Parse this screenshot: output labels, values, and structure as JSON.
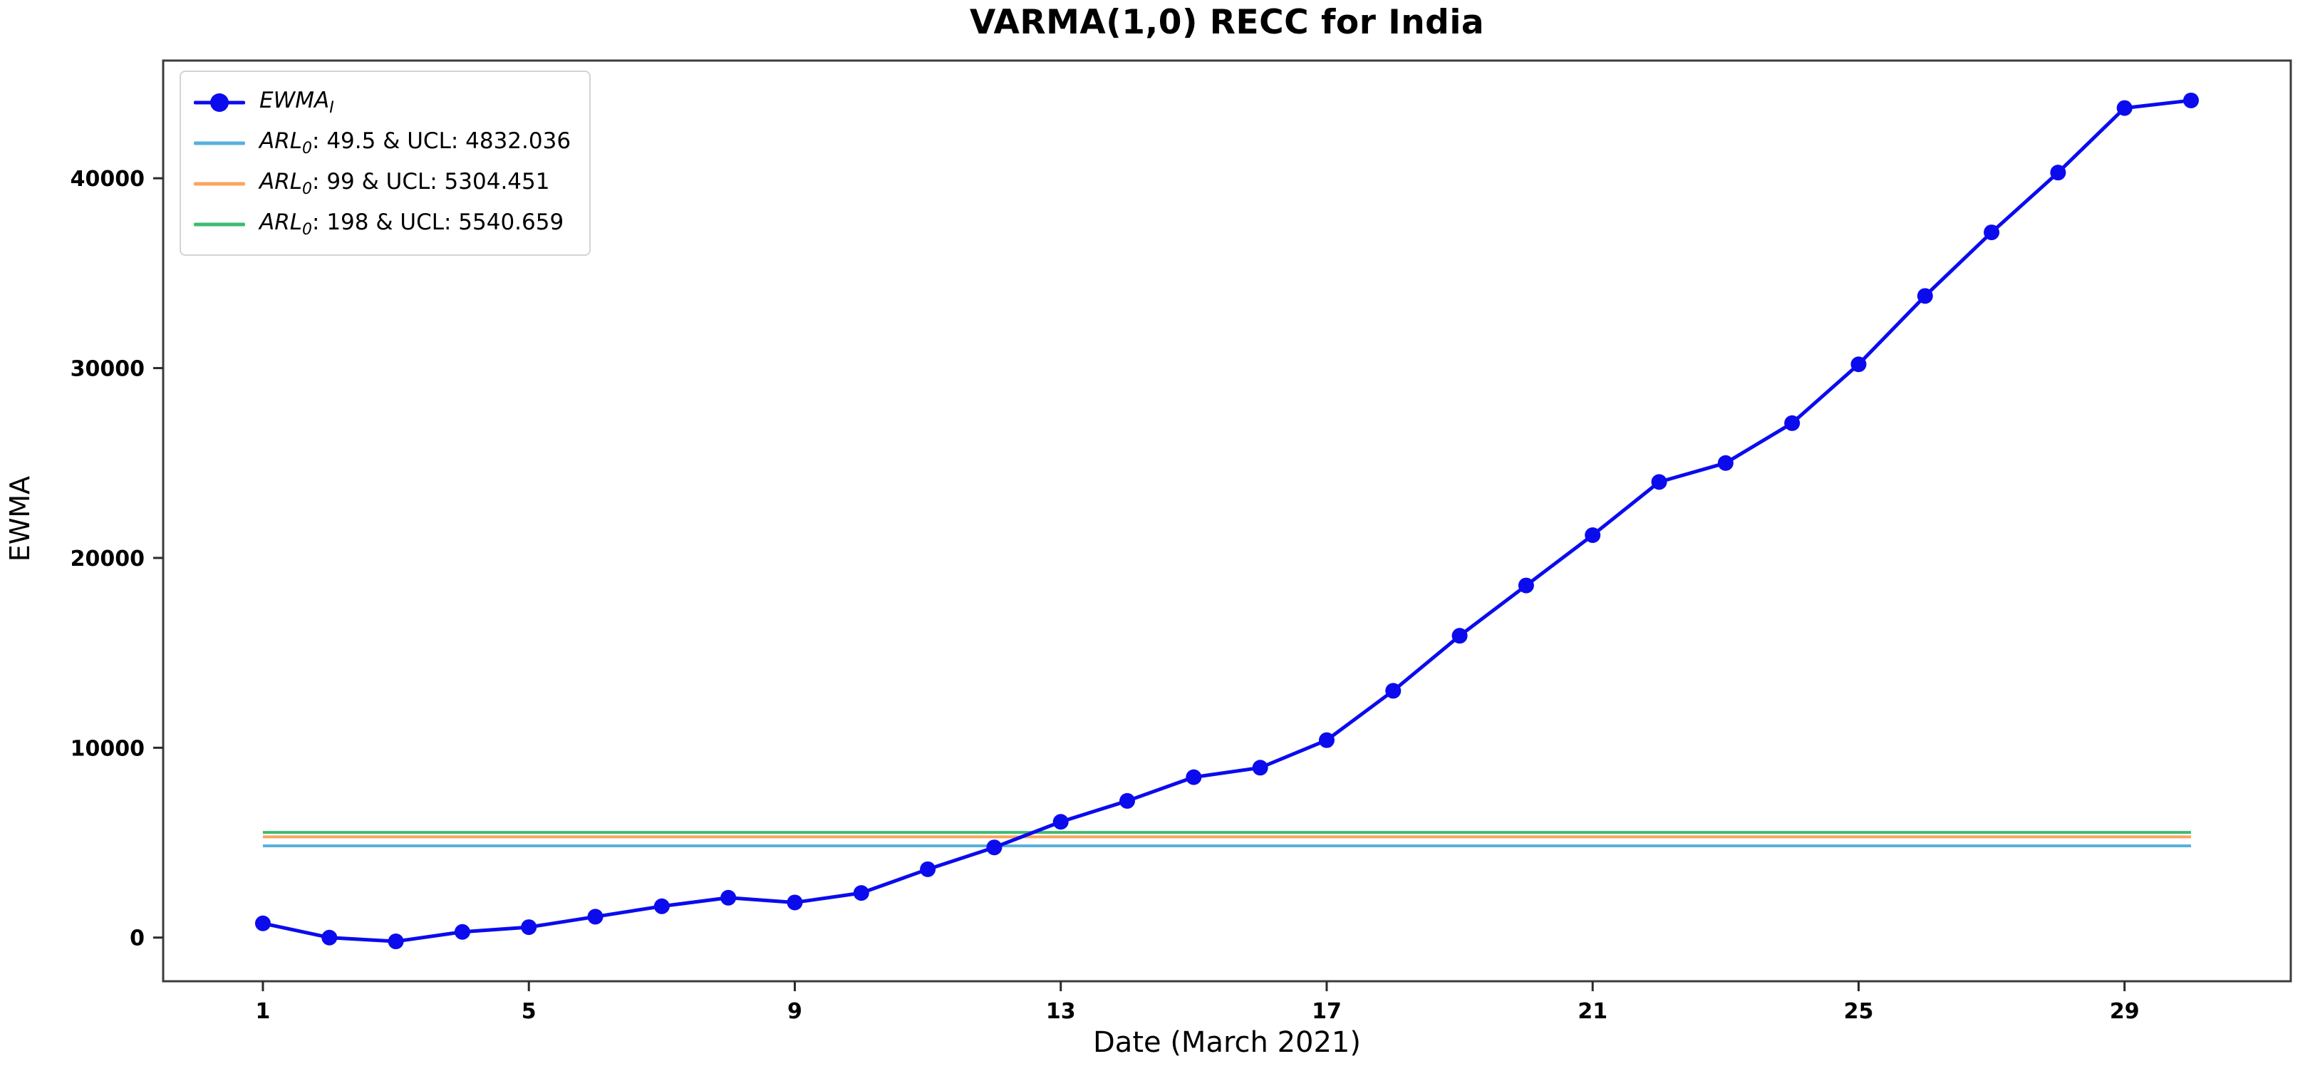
{
  "title": "VARMA(1,0) RECC for India",
  "axes": {
    "x_label": "Date (March 2021)",
    "y_label": "EWMA"
  },
  "legend": {
    "items": [
      {
        "swatch": "line-marker",
        "color": "#0b0bee",
        "prefix": "EWMA",
        "sub": "I",
        "rest": ""
      },
      {
        "swatch": "line",
        "color": "#58b0dc",
        "prefix": "ARL",
        "sub": "0",
        "rest": ": 49.5 & UCL: 4832.036"
      },
      {
        "swatch": "line",
        "color": "#fba55c",
        "prefix": "ARL",
        "sub": "0",
        "rest": ": 99 & UCL: 5304.451"
      },
      {
        "swatch": "line",
        "color": "#3dbb72",
        "prefix": "ARL",
        "sub": "0",
        "rest": ": 198 & UCL: 5540.659"
      }
    ]
  },
  "chart_data": {
    "type": "line",
    "title": "VARMA(1,0) RECC for India",
    "xlabel": "Date (March 2021)",
    "ylabel": "EWMA",
    "x": [
      1,
      2,
      3,
      4,
      5,
      6,
      7,
      8,
      9,
      10,
      11,
      12,
      13,
      14,
      15,
      16,
      17,
      18,
      19,
      20,
      21,
      22,
      23,
      24,
      25,
      26,
      27,
      28,
      29,
      30
    ],
    "series": [
      {
        "name": "EWMA_I",
        "color": "#0b0bee",
        "marker": "circle",
        "values": [
          750,
          0,
          -200,
          300,
          550,
          1100,
          1650,
          2100,
          1850,
          2350,
          3600,
          4750,
          6100,
          7200,
          8450,
          8950,
          10400,
          13000,
          15900,
          18550,
          21200,
          24000,
          25000,
          27100,
          30200,
          33800,
          37150,
          40300,
          43700,
          44100
        ]
      }
    ],
    "hlines": [
      {
        "label": "ARL0: 49.5 & UCL: 4832.036",
        "value": 4832.036,
        "color": "#58b0dc",
        "x_start": 1,
        "x_end": 30
      },
      {
        "label": "ARL0: 99 & UCL: 5304.451",
        "value": 5304.451,
        "color": "#fba55c",
        "x_start": 1,
        "x_end": 30
      },
      {
        "label": "ARL0: 198 & UCL: 5540.659",
        "value": 5540.659,
        "color": "#3dbb72",
        "x_start": 1,
        "x_end": 30
      }
    ],
    "x_ticks": [
      1,
      5,
      9,
      13,
      17,
      21,
      25,
      29
    ],
    "y_ticks": [
      0,
      10000,
      20000,
      30000,
      40000
    ],
    "xlim": [
      -0.5,
      31.5
    ],
    "ylim": [
      -2300,
      46200
    ],
    "grid": false,
    "legend_position": "upper-left"
  },
  "style": {
    "spine_color": "#3c3c3c",
    "tick_color": "#2a2a2a",
    "line_width": 5,
    "marker_radius": 11,
    "hline_width": 4
  }
}
